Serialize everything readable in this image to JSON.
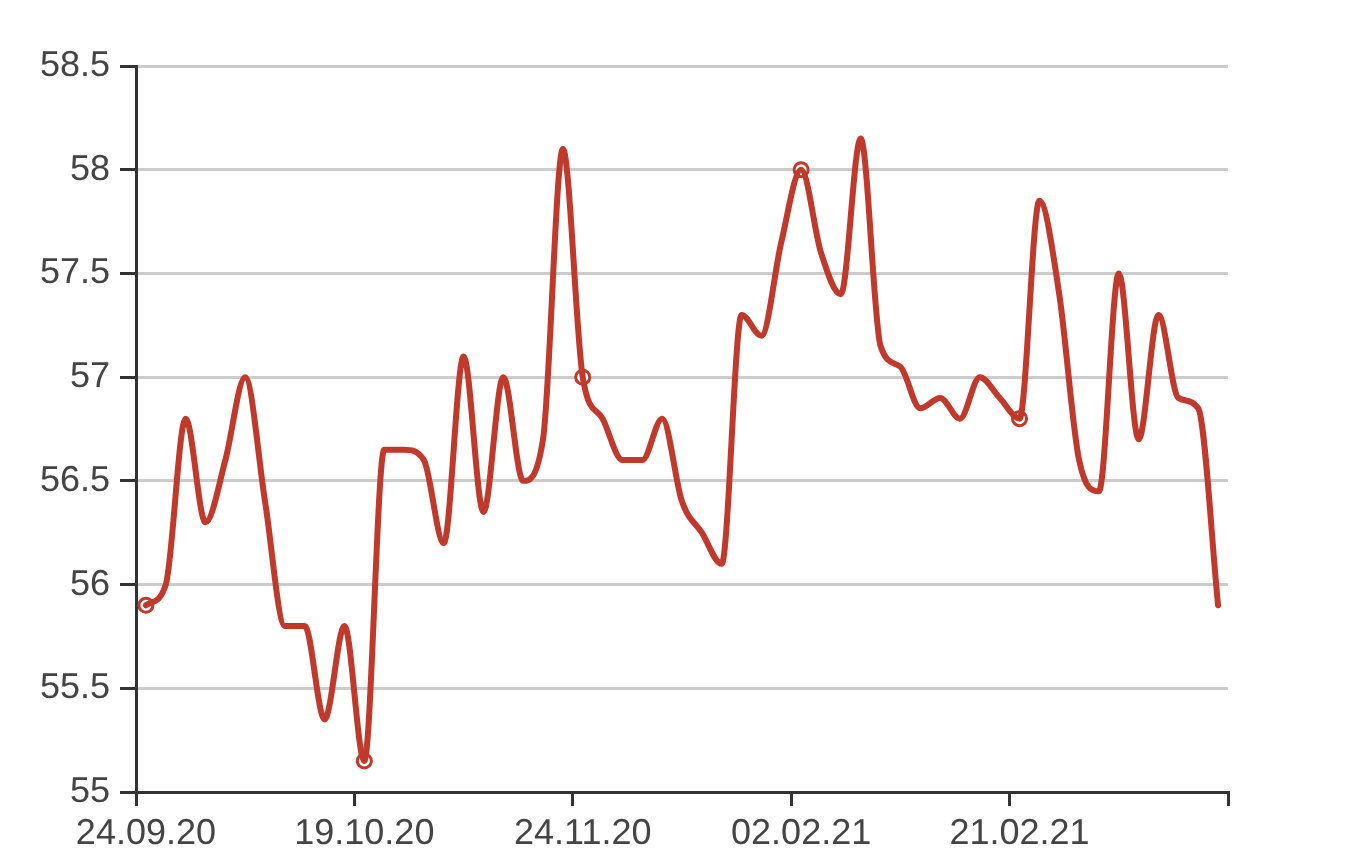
{
  "chart_data": {
    "type": "line",
    "categories": [
      "24.09.20",
      null,
      null,
      null,
      null,
      null,
      null,
      null,
      null,
      null,
      null,
      "19.10.20",
      null,
      null,
      null,
      null,
      null,
      null,
      null,
      null,
      null,
      null,
      "24.11.20",
      null,
      null,
      null,
      null,
      null,
      null,
      null,
      null,
      null,
      null,
      "02.02.21",
      null,
      null,
      null,
      null,
      null,
      null,
      null,
      null,
      null,
      null,
      "21.02.21",
      null,
      null,
      null,
      null,
      null,
      null,
      null,
      null,
      null,
      null
    ],
    "series": [
      {
        "color": "#c0392b",
        "values": [
          55.9,
          56.0,
          56.8,
          56.3,
          56.6,
          57.0,
          56.4,
          55.8,
          55.8,
          55.35,
          55.8,
          55.15,
          56.65,
          56.65,
          56.6,
          56.2,
          57.1,
          56.35,
          57.0,
          56.5,
          56.7,
          58.1,
          57.0,
          56.8,
          56.6,
          56.6,
          56.8,
          56.4,
          56.25,
          56.1,
          57.3,
          57.2,
          57.65,
          58.0,
          57.6,
          57.4,
          58.15,
          57.15,
          57.05,
          56.85,
          56.9,
          56.8,
          57.0,
          56.9,
          56.8,
          57.85,
          57.4,
          56.6,
          56.45,
          57.5,
          56.7,
          57.3,
          56.9,
          56.85,
          55.9
        ]
      },
      {
        "type": "scatter",
        "color": "#c0392b",
        "marker": "circle",
        "x": [
          "24.09.20",
          "19.10.20",
          "24.11.20",
          "02.02.21",
          "21.02.21"
        ],
        "values": [
          55.9,
          55.15,
          57.0,
          58.0,
          56.8
        ]
      }
    ],
    "ylim": [
      55,
      58.5
    ],
    "yticks": [
      55,
      55.5,
      56,
      56.5,
      57,
      57.5,
      58,
      58.5
    ],
    "grid": "y",
    "legend": false,
    "line_style": "solid"
  }
}
